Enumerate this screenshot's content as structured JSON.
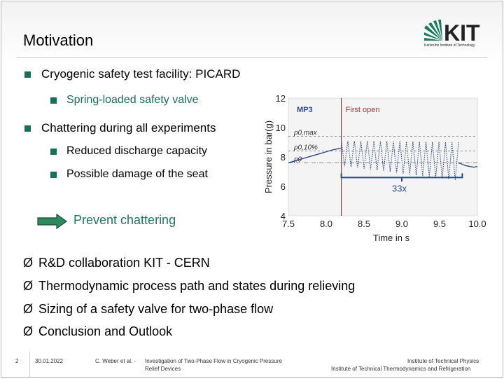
{
  "slide": {
    "title": "Motivation",
    "logo_text": "KIT",
    "logo_subtext": "Karlsruhe Institute of Technology",
    "bullets": {
      "b1": "Cryogenic safety test facility: PICARD",
      "b1_sub": "Spring-loaded safety valve",
      "b2": "Chattering during all experiments",
      "b2_sub1": "Reduced discharge capacity",
      "b2_sub2": "Possible damage of the seat"
    },
    "callout": "Prevent chattering",
    "checklist": [
      "R&D collaboration KIT - CERN",
      "Thermodynamic process path and states during relieving",
      "Sizing of a safety valve for two-phase flow",
      "Conclusion and Outlook"
    ],
    "checkmark_glyph": "Ø",
    "colors": {
      "accent": "#1a6f57",
      "series": "#2b4a8c",
      "first_open": "#b03030"
    }
  },
  "footer": {
    "page": "2",
    "date": "30.01.2022",
    "author": "C. Weber et al. -",
    "talk_title_line1": "Investigation of Two-Phase Flow in Cryogenic Pressure",
    "talk_title_line2": "Relief Devices",
    "inst_line1": "Institute of Technical Physics",
    "inst_line2": "Institute of Technical Thermodynamics and Refrigeration"
  },
  "chart_data": {
    "type": "line",
    "series_label": "MP3",
    "xlabel": "Time in s",
    "ylabel": "Pressure in bar(g)",
    "xlim": [
      7.5,
      10.0
    ],
    "ylim": [
      4,
      12
    ],
    "xticks": [
      "7.5",
      "8.0",
      "8.5",
      "9.0",
      "9.5",
      "10.0"
    ],
    "yticks": [
      "4",
      "6",
      "8",
      "10",
      "12"
    ],
    "first_open": {
      "label": "First open",
      "x": 8.2
    },
    "reference_lines": [
      {
        "label": "p0,max",
        "y": 9.4
      },
      {
        "label": "p0,10%",
        "y": 8.4
      },
      {
        "label": "p0",
        "y": 7.6
      }
    ],
    "annotation": {
      "label": "33x",
      "x_range": [
        8.2,
        9.8
      ]
    },
    "rise": {
      "x": [
        7.5,
        7.7,
        7.9,
        8.1,
        8.2
      ],
      "y": [
        7.6,
        7.9,
        8.2,
        8.5,
        8.6
      ]
    },
    "oscillation": {
      "x_start": 8.2,
      "x_end": 9.75,
      "upper_start": 9.1,
      "upper_end": 9.0,
      "lower_start": 7.4,
      "lower_end": 6.4
    },
    "tail": {
      "x": [
        9.75,
        9.85,
        9.95,
        10.0
      ],
      "y": [
        7.6,
        7.4,
        7.3,
        7.35
      ]
    }
  }
}
